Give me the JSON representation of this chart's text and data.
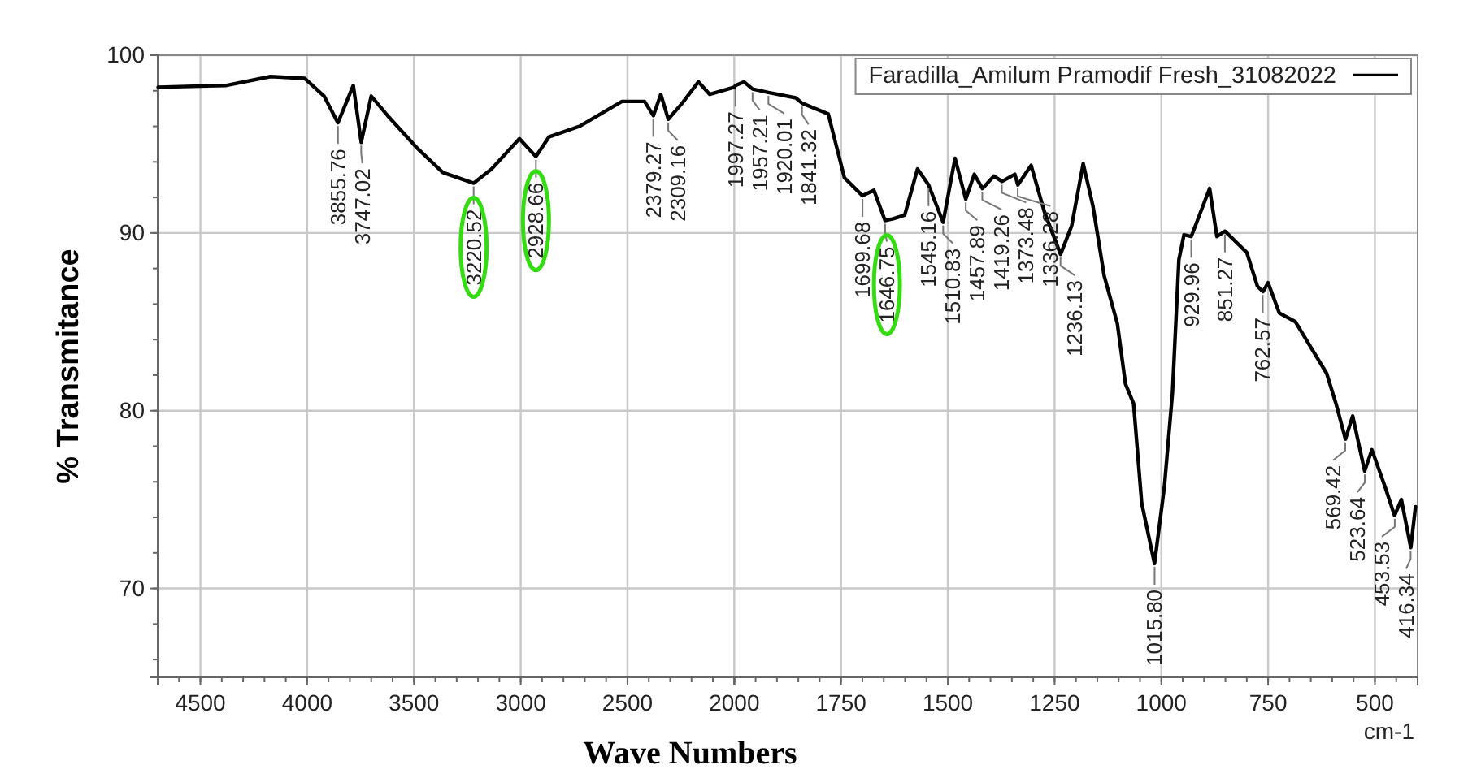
{
  "chart_data": [
    {
      "type": "line",
      "xlabel": "Wave Numbers",
      "ylabel": "% Transmitance",
      "xlim": [
        4700,
        2000
      ],
      "xticks": [
        4500,
        4000,
        3500,
        3000,
        2500,
        2000
      ],
      "ylim": [
        65,
        100
      ],
      "yticks": [
        70,
        80,
        90,
        100
      ],
      "grid": true,
      "series": [
        {
          "color": "#000000",
          "x": [
            4698,
            4378,
            4172,
            4012,
            3921,
            3856,
            3784,
            3747,
            3700,
            3616,
            3487,
            3365,
            3220,
            3136,
            3006,
            2929,
            2868,
            2725,
            2526,
            2420,
            2379,
            2344,
            2309,
            2244,
            2168,
            2115,
            2000
          ],
          "values": [
            98.2,
            98.3,
            98.8,
            98.7,
            97.7,
            96.2,
            98.3,
            95.1,
            97.7,
            96.5,
            94.8,
            93.4,
            92.8,
            93.6,
            95.3,
            94.3,
            95.4,
            96.0,
            97.4,
            97.4,
            96.6,
            97.8,
            96.4,
            97.3,
            98.5,
            97.8,
            98.2
          ]
        }
      ],
      "annotations": [
        {
          "text": "3855.76",
          "x": 3855.76,
          "y": 96.2
        },
        {
          "text": "3747.02",
          "x": 3747.02,
          "y": 95.1
        },
        {
          "text": "3220.52",
          "x": 3220.52,
          "y": 92.8
        },
        {
          "text": "2928.66",
          "x": 2928.66,
          "y": 94.3
        },
        {
          "text": "2379.27",
          "x": 2379.27,
          "y": 96.6
        },
        {
          "text": "2309.16",
          "x": 2309.16,
          "y": 96.4
        }
      ]
    },
    {
      "type": "line",
      "xlim": [
        2000,
        400
      ],
      "xticks": [
        1750,
        1500,
        1250,
        1000,
        750,
        500
      ],
      "ylim": [
        65,
        100
      ],
      "yticks": [
        70,
        80,
        90,
        100
      ],
      "grid": true,
      "legend": "top right",
      "tick_labels": "x",
      "series": [
        {
          "name": "Faradilla_Amilum Pramodif Fresh_31082022",
          "color": "#000000",
          "x": [
            2000,
            1997,
            1977,
            1957,
            1920,
            1856,
            1841,
            1780,
            1742,
            1700,
            1673,
            1647,
            1628,
            1601,
            1571,
            1545,
            1511,
            1483,
            1458,
            1438,
            1419,
            1392,
            1373,
            1343,
            1336,
            1305,
            1274,
            1236,
            1210,
            1183,
            1160,
            1134,
            1103,
            1084,
            1065,
            1046,
            1016,
            993,
            974,
            959,
            947,
            930,
            887,
            870,
            851,
            800,
            775,
            762,
            750,
            724,
            686,
            613,
            590,
            569,
            552,
            524,
            507,
            476,
            454,
            438,
            416,
            405
          ],
          "values": [
            98.2,
            98.3,
            98.5,
            98.1,
            97.9,
            97.6,
            97.3,
            96.7,
            93.1,
            92.1,
            92.4,
            90.7,
            90.8,
            91.0,
            93.6,
            92.7,
            90.6,
            94.2,
            91.9,
            93.3,
            92.5,
            93.2,
            92.9,
            93.3,
            92.7,
            93.8,
            91.2,
            88.8,
            90.4,
            93.9,
            91.5,
            87.6,
            84.9,
            81.5,
            80.4,
            74.8,
            71.4,
            75.7,
            81.0,
            88.5,
            89.9,
            89.8,
            92.5,
            89.8,
            90.1,
            88.9,
            87.0,
            86.7,
            87.2,
            85.5,
            85.0,
            82.1,
            80.3,
            78.4,
            79.7,
            76.6,
            77.8,
            75.7,
            74.1,
            75.0,
            72.3,
            74.6
          ]
        }
      ],
      "annotations": [
        {
          "text": "1997.27",
          "x": 1997.27,
          "y": 98.3
        },
        {
          "text": "1957.21",
          "x": 1957.21,
          "y": 98.1
        },
        {
          "text": "1920.01",
          "x": 1920.01,
          "y": 97.9
        },
        {
          "text": "1841.32",
          "x": 1841.32,
          "y": 97.3
        },
        {
          "text": "1699.68",
          "x": 1699.68,
          "y": 92.1
        },
        {
          "text": "1646.75",
          "x": 1646.75,
          "y": 90.7
        },
        {
          "text": "1545.16",
          "x": 1545.16,
          "y": 92.7
        },
        {
          "text": "1510.83",
          "x": 1510.83,
          "y": 90.6
        },
        {
          "text": "1457.89",
          "x": 1457.89,
          "y": 91.9
        },
        {
          "text": "1419.26",
          "x": 1419.26,
          "y": 92.5
        },
        {
          "text": "1373.48",
          "x": 1373.48,
          "y": 92.9
        },
        {
          "text": "1336.28",
          "x": 1336.28,
          "y": 92.7
        },
        {
          "text": "1236.13",
          "x": 1236.13,
          "y": 88.8
        },
        {
          "text": "1015.80",
          "x": 1015.8,
          "y": 71.4
        },
        {
          "text": "929.96",
          "x": 929.96,
          "y": 89.8
        },
        {
          "text": "851.27",
          "x": 851.27,
          "y": 90.1
        },
        {
          "text": "762.57",
          "x": 762.57,
          "y": 86.7
        },
        {
          "text": "569.42",
          "x": 569.42,
          "y": 78.4
        },
        {
          "text": "523.64",
          "x": 523.64,
          "y": 76.6
        },
        {
          "text": "453.53",
          "x": 453.53,
          "y": 74.1
        },
        {
          "text": "416.34",
          "x": 416.34,
          "y": 72.3
        },
        "cm-1"
      ]
    }
  ]
}
